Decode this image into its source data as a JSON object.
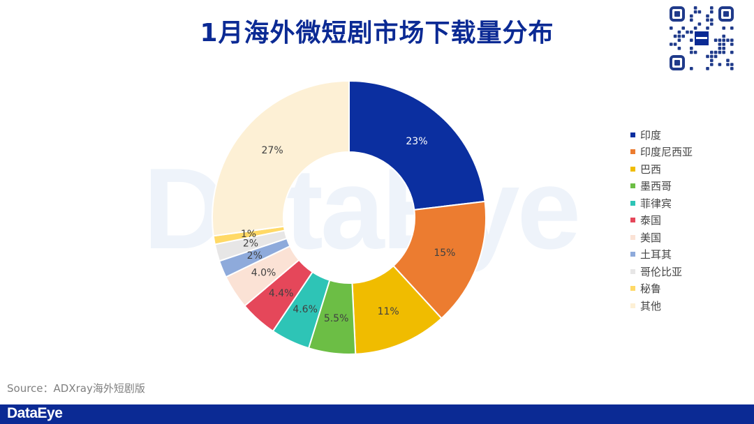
{
  "title": "1月海外微短剧市场下载量分布",
  "watermark": "DataEye",
  "source": "Source：ADXray海外短剧版",
  "footer_logo": "DataEye",
  "chart_data": {
    "type": "pie",
    "variant": "donut",
    "categories": [
      "印度",
      "印度尼西亚",
      "巴西",
      "墨西哥",
      "菲律宾",
      "泰国",
      "美国",
      "土耳其",
      "哥伦比亚",
      "秘鲁",
      "其他"
    ],
    "values": [
      23,
      15,
      11,
      5.5,
      4.6,
      4.4,
      4.0,
      2,
      2,
      1,
      27
    ],
    "labels": [
      "23%",
      "15%",
      "11%",
      "5.5%",
      "4.6%",
      "4.4%",
      "4.0%",
      "2%",
      "2%",
      "1%",
      "27%"
    ],
    "colors": [
      "#0b2fa0",
      "#ec7c30",
      "#f0bc00",
      "#6cbe45",
      "#2ec4b6",
      "#e5475a",
      "#fbe2d5",
      "#8eaadb",
      "#e7e6e6",
      "#ffd966",
      "#fdf0d5"
    ],
    "legend_position": "right"
  }
}
